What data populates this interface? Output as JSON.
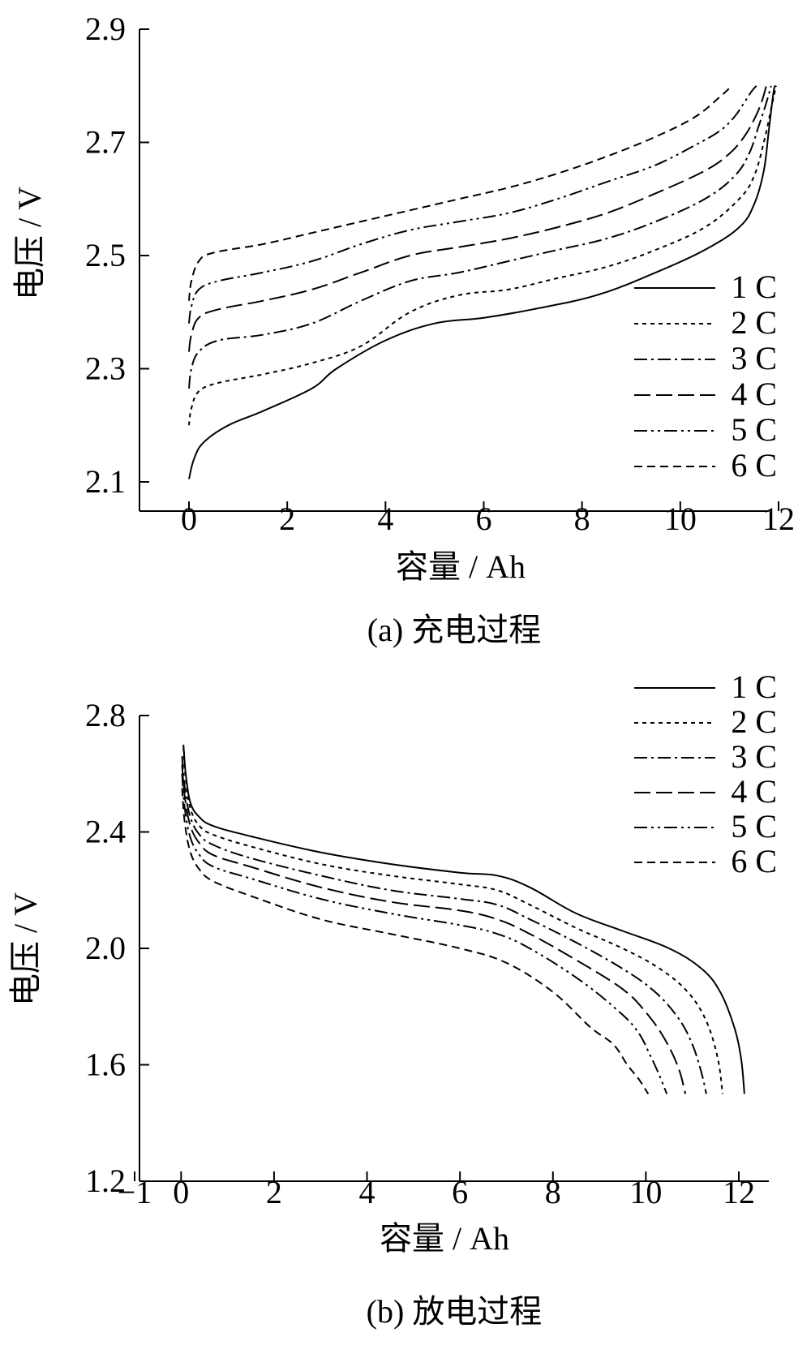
{
  "chart_data": [
    {
      "type": "line",
      "caption": "(a)  充电过程",
      "xlabel": "容量 / Ah",
      "ylabel": "电压 / V",
      "xlim": [
        -1,
        12
      ],
      "ylim": [
        2.0,
        2.9
      ],
      "xticks": [
        0,
        2,
        4,
        6,
        8,
        10,
        12
      ],
      "xtick_labels": [
        "0",
        "2",
        "4",
        "6",
        "8",
        "10",
        "12"
      ],
      "yticks": [
        2.1,
        2.3,
        2.5,
        2.7,
        2.9
      ],
      "ytick_labels": [
        "2.1",
        "2.3",
        "2.5",
        "2.7",
        "2.9"
      ],
      "legend_position": "right",
      "series": [
        {
          "name": "1 C",
          "dash": "solid",
          "x": [
            0,
            0.1,
            0.3,
            0.8,
            1.5,
            2.5,
            3.0,
            4.0,
            5.0,
            6.0,
            7.0,
            8.3,
            9.5,
            10.5,
            11.2,
            11.5,
            11.7,
            11.8,
            11.9,
            11.95
          ],
          "y": [
            2.105,
            2.14,
            2.17,
            2.2,
            2.225,
            2.265,
            2.3,
            2.35,
            2.38,
            2.39,
            2.405,
            2.43,
            2.47,
            2.51,
            2.55,
            2.59,
            2.65,
            2.72,
            2.79,
            2.8
          ]
        },
        {
          "name": "2 C",
          "dash": "dot",
          "x": [
            0,
            0.05,
            0.2,
            0.6,
            1.5,
            2.5,
            3.5,
            4.5,
            5.5,
            6.5,
            7.5,
            8.5,
            9.5,
            10.5,
            11.2,
            11.5,
            11.7,
            11.85,
            11.95
          ],
          "y": [
            2.2,
            2.23,
            2.26,
            2.275,
            2.29,
            2.31,
            2.34,
            2.4,
            2.43,
            2.44,
            2.46,
            2.48,
            2.51,
            2.55,
            2.6,
            2.64,
            2.7,
            2.76,
            2.8
          ]
        },
        {
          "name": "3 C",
          "dash": "dashdot",
          "x": [
            0,
            0.05,
            0.2,
            0.6,
            1.5,
            2.5,
            3.5,
            4.5,
            5.5,
            6.5,
            7.5,
            8.5,
            9.5,
            10.5,
            11.1,
            11.4,
            11.6,
            11.75,
            11.85
          ],
          "y": [
            2.265,
            2.3,
            2.33,
            2.35,
            2.36,
            2.38,
            2.42,
            2.455,
            2.47,
            2.49,
            2.51,
            2.53,
            2.56,
            2.6,
            2.64,
            2.68,
            2.73,
            2.77,
            2.8
          ]
        },
        {
          "name": "4 C",
          "dash": "longdash",
          "x": [
            0,
            0.05,
            0.2,
            0.6,
            1.5,
            2.5,
            3.5,
            4.5,
            5.5,
            6.5,
            7.5,
            8.5,
            9.5,
            10.5,
            11.0,
            11.3,
            11.5,
            11.65,
            11.75
          ],
          "y": [
            2.33,
            2.36,
            2.39,
            2.405,
            2.42,
            2.44,
            2.47,
            2.5,
            2.515,
            2.53,
            2.55,
            2.575,
            2.61,
            2.65,
            2.68,
            2.71,
            2.74,
            2.77,
            2.8
          ]
        },
        {
          "name": "5 C",
          "dash": "dashdotdot",
          "x": [
            0,
            0.05,
            0.2,
            0.6,
            1.5,
            2.5,
            3.5,
            4.5,
            5.5,
            6.5,
            7.5,
            8.5,
            9.5,
            10.3,
            10.8,
            11.1,
            11.3,
            11.45,
            11.55
          ],
          "y": [
            2.38,
            2.41,
            2.44,
            2.455,
            2.47,
            2.49,
            2.52,
            2.545,
            2.56,
            2.575,
            2.6,
            2.63,
            2.66,
            2.695,
            2.72,
            2.745,
            2.77,
            2.79,
            2.8
          ]
        },
        {
          "name": "6 C",
          "dash": "dash",
          "x": [
            0,
            0.05,
            0.2,
            0.5,
            1.5,
            2.5,
            3.5,
            4.5,
            5.5,
            6.5,
            7.5,
            8.5,
            9.5,
            10.3,
            10.8,
            11.05
          ],
          "y": [
            2.42,
            2.455,
            2.49,
            2.505,
            2.52,
            2.54,
            2.56,
            2.58,
            2.6,
            2.62,
            2.645,
            2.675,
            2.71,
            2.745,
            2.78,
            2.8
          ]
        }
      ]
    },
    {
      "type": "line",
      "caption": "(b)  放电过程",
      "xlabel": "容量 / Ah",
      "ylabel": "电压 / V",
      "xlim": [
        -1,
        12.5
      ],
      "ylim": [
        1.2,
        2.8
      ],
      "xticks": [
        -1,
        0,
        2,
        4,
        6,
        8,
        10,
        12
      ],
      "xtick_labels": [
        "−1",
        "0",
        "2",
        "4",
        "6",
        "8",
        "10",
        "12"
      ],
      "yticks": [
        1.2,
        1.6,
        2.0,
        2.4,
        2.8
      ],
      "ytick_labels": [
        "1.2",
        "1.6",
        "2.0",
        "2.4",
        "2.8"
      ],
      "legend_position": "top-right",
      "series": [
        {
          "name": "1 C",
          "dash": "solid",
          "x": [
            0.05,
            0.1,
            0.2,
            0.4,
            0.7,
            1.5,
            3.0,
            4.5,
            6.0,
            6.8,
            7.5,
            8.5,
            9.5,
            10.5,
            11.2,
            11.6,
            11.9,
            12.05,
            12.12
          ],
          "y": [
            2.7,
            2.6,
            2.5,
            2.45,
            2.42,
            2.385,
            2.33,
            2.29,
            2.26,
            2.25,
            2.21,
            2.12,
            2.06,
            2.0,
            1.93,
            1.85,
            1.73,
            1.62,
            1.5
          ]
        },
        {
          "name": "2 C",
          "dash": "dot",
          "x": [
            0.05,
            0.1,
            0.2,
            0.4,
            0.7,
            1.5,
            3.0,
            4.5,
            6.0,
            6.8,
            7.5,
            8.5,
            9.5,
            10.3,
            10.9,
            11.3,
            11.55,
            11.65
          ],
          "y": [
            2.69,
            2.58,
            2.48,
            2.42,
            2.39,
            2.35,
            2.29,
            2.25,
            2.22,
            2.2,
            2.15,
            2.07,
            2.0,
            1.93,
            1.85,
            1.75,
            1.62,
            1.5
          ]
        },
        {
          "name": "3 C",
          "dash": "dashdot",
          "x": [
            0.02,
            0.08,
            0.2,
            0.4,
            0.7,
            1.5,
            3.0,
            4.5,
            6.0,
            6.8,
            7.5,
            8.5,
            9.5,
            10.2,
            10.7,
            11.0,
            11.2,
            11.3
          ],
          "y": [
            2.66,
            2.55,
            2.45,
            2.39,
            2.355,
            2.31,
            2.25,
            2.2,
            2.17,
            2.15,
            2.1,
            2.02,
            1.93,
            1.85,
            1.76,
            1.67,
            1.57,
            1.5
          ]
        },
        {
          "name": "4 C",
          "dash": "longdash",
          "x": [
            0.02,
            0.08,
            0.2,
            0.4,
            0.7,
            1.5,
            3.0,
            4.5,
            6.0,
            6.8,
            7.5,
            8.5,
            9.5,
            10.0,
            10.4,
            10.7,
            10.85
          ],
          "y": [
            2.63,
            2.52,
            2.42,
            2.36,
            2.32,
            2.28,
            2.21,
            2.16,
            2.13,
            2.1,
            2.05,
            1.96,
            1.86,
            1.78,
            1.69,
            1.59,
            1.5
          ]
        },
        {
          "name": "5 C",
          "dash": "dashdotdot",
          "x": [
            0.02,
            0.08,
            0.2,
            0.4,
            0.7,
            1.5,
            3.0,
            4.5,
            6.0,
            6.8,
            7.5,
            8.5,
            9.3,
            9.8,
            10.1,
            10.3,
            10.45
          ],
          "y": [
            2.6,
            2.48,
            2.38,
            2.32,
            2.28,
            2.24,
            2.17,
            2.12,
            2.08,
            2.05,
            2.0,
            1.9,
            1.8,
            1.72,
            1.63,
            1.56,
            1.5
          ]
        },
        {
          "name": "6 C",
          "dash": "dash",
          "x": [
            0.02,
            0.08,
            0.2,
            0.4,
            0.7,
            1.5,
            3.0,
            4.5,
            6.0,
            7.0,
            8.0,
            8.8,
            9.3,
            9.6,
            9.85,
            10.05
          ],
          "y": [
            2.55,
            2.43,
            2.33,
            2.27,
            2.23,
            2.18,
            2.1,
            2.05,
            2.0,
            1.95,
            1.85,
            1.73,
            1.67,
            1.6,
            1.55,
            1.5
          ]
        }
      ]
    }
  ]
}
